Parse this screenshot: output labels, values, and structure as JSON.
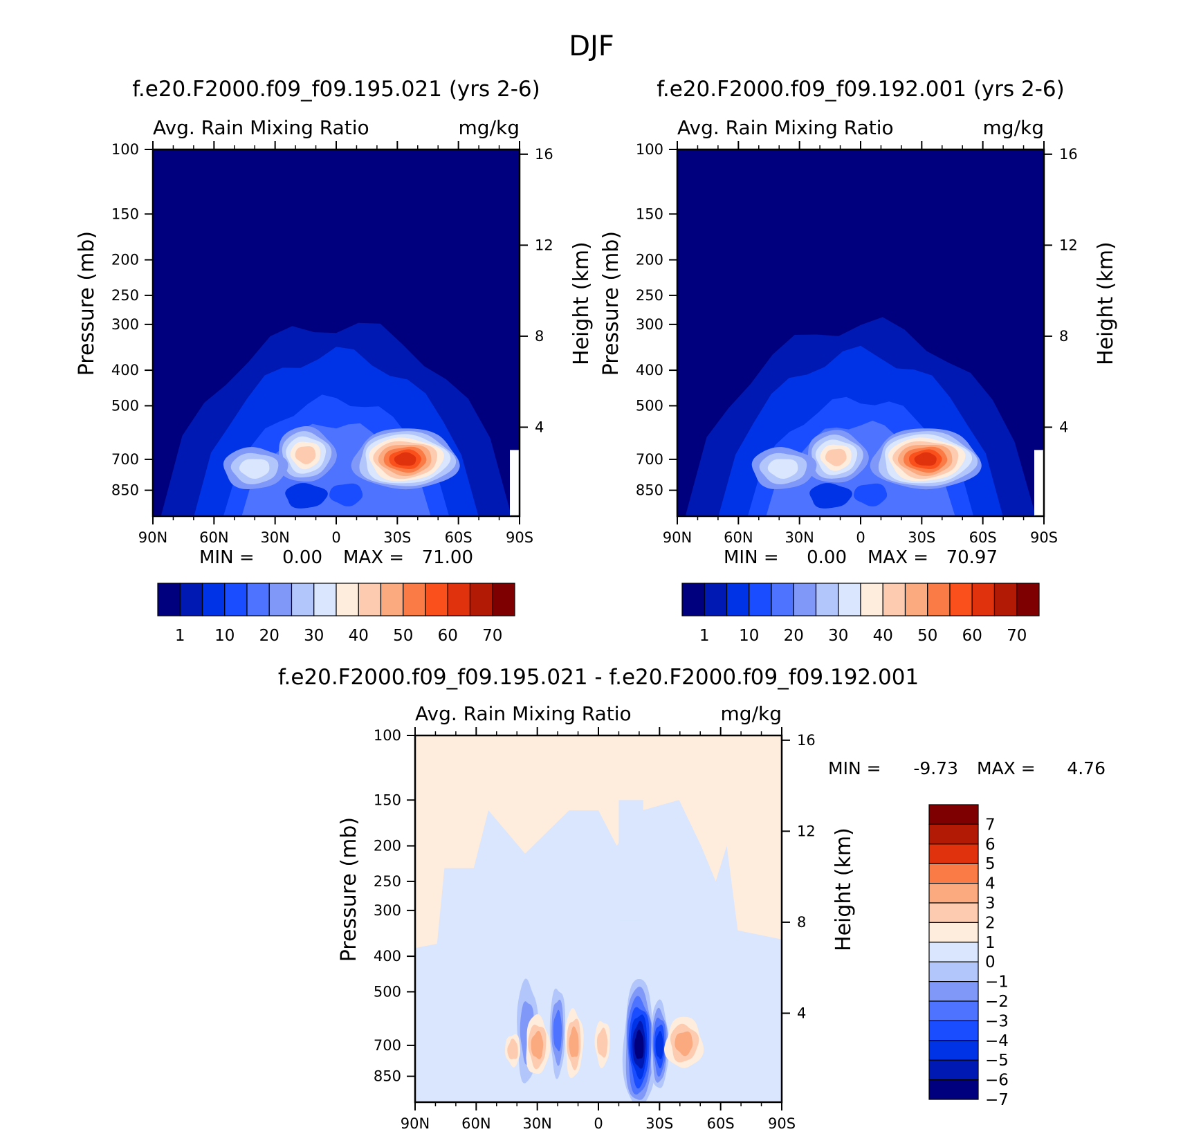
{
  "figure": {
    "title": "DJF"
  },
  "chart_data": [
    {
      "type": "heatmap",
      "title": "f.e20.F2000.f09_f09.195.021 (yrs 2-6)",
      "subtitle_left": "Avg. Rain Mixing Ratio",
      "subtitle_right": "mg/kg",
      "ylabel": "Pressure (mb)",
      "ylabel_right": "Height (km)",
      "xticks": [
        "90N",
        "60N",
        "30N",
        "0",
        "30S",
        "60S",
        "90S"
      ],
      "x_range": [
        90,
        -90
      ],
      "yticks": [
        100,
        150,
        200,
        250,
        300,
        400,
        500,
        700,
        850
      ],
      "ylim": [
        1000,
        100
      ],
      "y_scale": "log",
      "yticks_right": [
        4,
        8,
        12,
        16
      ],
      "min_label": "MIN =",
      "min_value": "0.00",
      "max_label": "MAX =",
      "max_value": "71.00",
      "colorbar": {
        "orientation": "horizontal",
        "colors": [
          "#00007f",
          "#0019b3",
          "#0033e6",
          "#1a4dff",
          "#4d73ff",
          "#8099f9",
          "#b3c6fb",
          "#d9e6fd",
          "#feecdc",
          "#fdccb0",
          "#fba97e",
          "#fb7b46",
          "#f9501c",
          "#e0320c",
          "#b31a06",
          "#7f0000"
        ],
        "labels": [
          "1",
          "10",
          "20",
          "30",
          "40",
          "50",
          "60",
          "70"
        ]
      },
      "features": [
        {
          "lat": -34,
          "p": 700,
          "value": 71
        },
        {
          "lat": 15,
          "p": 680,
          "value": 40
        },
        {
          "lat": 0,
          "p": 700,
          "value": 25
        }
      ]
    },
    {
      "type": "heatmap",
      "title": "f.e20.F2000.f09_f09.192.001 (yrs 2-6)",
      "subtitle_left": "Avg. Rain Mixing Ratio",
      "subtitle_right": "mg/kg",
      "ylabel": "Pressure (mb)",
      "ylabel_right": "Height (km)",
      "xticks": [
        "90N",
        "60N",
        "30N",
        "0",
        "30S",
        "60S",
        "90S"
      ],
      "x_range": [
        90,
        -90
      ],
      "yticks": [
        100,
        150,
        200,
        250,
        300,
        400,
        500,
        700,
        850
      ],
      "ylim": [
        1000,
        100
      ],
      "y_scale": "log",
      "yticks_right": [
        4,
        8,
        12,
        16
      ],
      "min_label": "MIN =",
      "min_value": "0.00",
      "max_label": "MAX =",
      "max_value": "70.97",
      "colorbar": {
        "orientation": "horizontal",
        "colors": [
          "#00007f",
          "#0019b3",
          "#0033e6",
          "#1a4dff",
          "#4d73ff",
          "#8099f9",
          "#b3c6fb",
          "#d9e6fd",
          "#feecdc",
          "#fdccb0",
          "#fba97e",
          "#fb7b46",
          "#f9501c",
          "#e0320c",
          "#b31a06",
          "#7f0000"
        ],
        "labels": [
          "1",
          "10",
          "20",
          "30",
          "40",
          "50",
          "60",
          "70"
        ]
      },
      "features": [
        {
          "lat": -32,
          "p": 700,
          "value": 71
        },
        {
          "lat": 12,
          "p": 690,
          "value": 40
        }
      ]
    },
    {
      "type": "heatmap",
      "title": "f.e20.F2000.f09_f09.195.021 - f.e20.F2000.f09_f09.192.001",
      "subtitle_left": "Avg. Rain Mixing Ratio",
      "subtitle_right": "mg/kg",
      "ylabel": "Pressure (mb)",
      "ylabel_right": "Height (km)",
      "xticks": [
        "90N",
        "60N",
        "30N",
        "0",
        "30S",
        "60S",
        "90S"
      ],
      "x_range": [
        90,
        -90
      ],
      "yticks": [
        100,
        150,
        200,
        250,
        300,
        400,
        500,
        700,
        850
      ],
      "ylim": [
        1000,
        100
      ],
      "y_scale": "log",
      "yticks_right": [
        4,
        8,
        12,
        16
      ],
      "min_label": "MIN =",
      "min_value": "-9.73",
      "max_label": "MAX =",
      "max_value": "4.76",
      "colorbar": {
        "orientation": "vertical",
        "colors": [
          "#7f0000",
          "#b31a06",
          "#e0320c",
          "#fb7b46",
          "#fba97e",
          "#fdccb0",
          "#feecdc",
          "#d9e6fd",
          "#b3c6fb",
          "#8099f9",
          "#4d73ff",
          "#1a4dff",
          "#0033e6",
          "#0019b3",
          "#00007f"
        ],
        "labels": [
          "7",
          "6",
          "5",
          "4",
          "3",
          "2",
          "1",
          "0",
          "−1",
          "−2",
          "−3",
          "−4",
          "−5",
          "−6",
          "−7"
        ]
      },
      "features": [
        {
          "lat": -20,
          "p": 700,
          "value": -9.73
        },
        {
          "lat": -30,
          "p": 700,
          "value": -7
        },
        {
          "lat": -42,
          "p": 690,
          "value": 4.76
        },
        {
          "lat": 30,
          "p": 690,
          "value": 4
        },
        {
          "lat": 12,
          "p": 690,
          "value": 3
        }
      ]
    }
  ]
}
